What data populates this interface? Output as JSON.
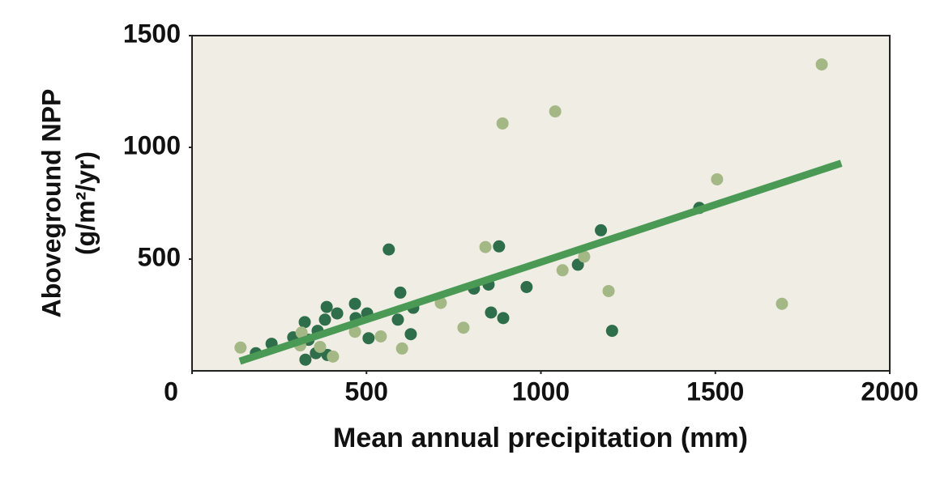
{
  "chart_data": {
    "type": "scatter",
    "x_label": "Mean annual precipitation (mm)",
    "y_label": [
      "Aboveground NPP",
      "(g/m²/yr)"
    ],
    "xlim": [
      0,
      2000
    ],
    "ylim": [
      0,
      1500
    ],
    "xticks": [
      0,
      500,
      1000,
      1500,
      2000
    ],
    "yticks": [
      500,
      1000,
      1500
    ],
    "background": "#f0ede4",
    "series": [
      {
        "color": "#2f6e4a",
        "x": [
          183,
          228,
          290,
          323,
          334,
          325,
          355,
          360,
          381,
          386,
          388,
          416,
          467,
          469,
          502,
          506,
          564,
          590,
          597,
          627,
          634,
          808,
          850,
          857,
          880,
          892,
          959,
          1106,
          1172,
          1204,
          1454
        ],
        "values": [
          79,
          121,
          150,
          218,
          139,
          50,
          79,
          179,
          229,
          286,
          71,
          257,
          300,
          236,
          257,
          146,
          543,
          229,
          350,
          164,
          282,
          368,
          386,
          261,
          557,
          236,
          375,
          475,
          629,
          179,
          729
        ]
      },
      {
        "color": "#a4b886",
        "x": [
          139,
          314,
          310,
          367,
          404,
          467,
          541,
          602,
          713,
          778,
          841,
          890,
          1041,
          1062,
          1124,
          1194,
          1505,
          1691,
          1805
        ],
        "values": [
          104,
          171,
          114,
          107,
          64,
          175,
          154,
          100,
          304,
          193,
          554,
          1107,
          1161,
          450,
          511,
          357,
          857,
          300,
          1371
        ]
      }
    ],
    "trend": {
      "color": "#4a9a55",
      "x": [
        137,
        1861
      ],
      "values": [
        43,
        929
      ]
    }
  }
}
